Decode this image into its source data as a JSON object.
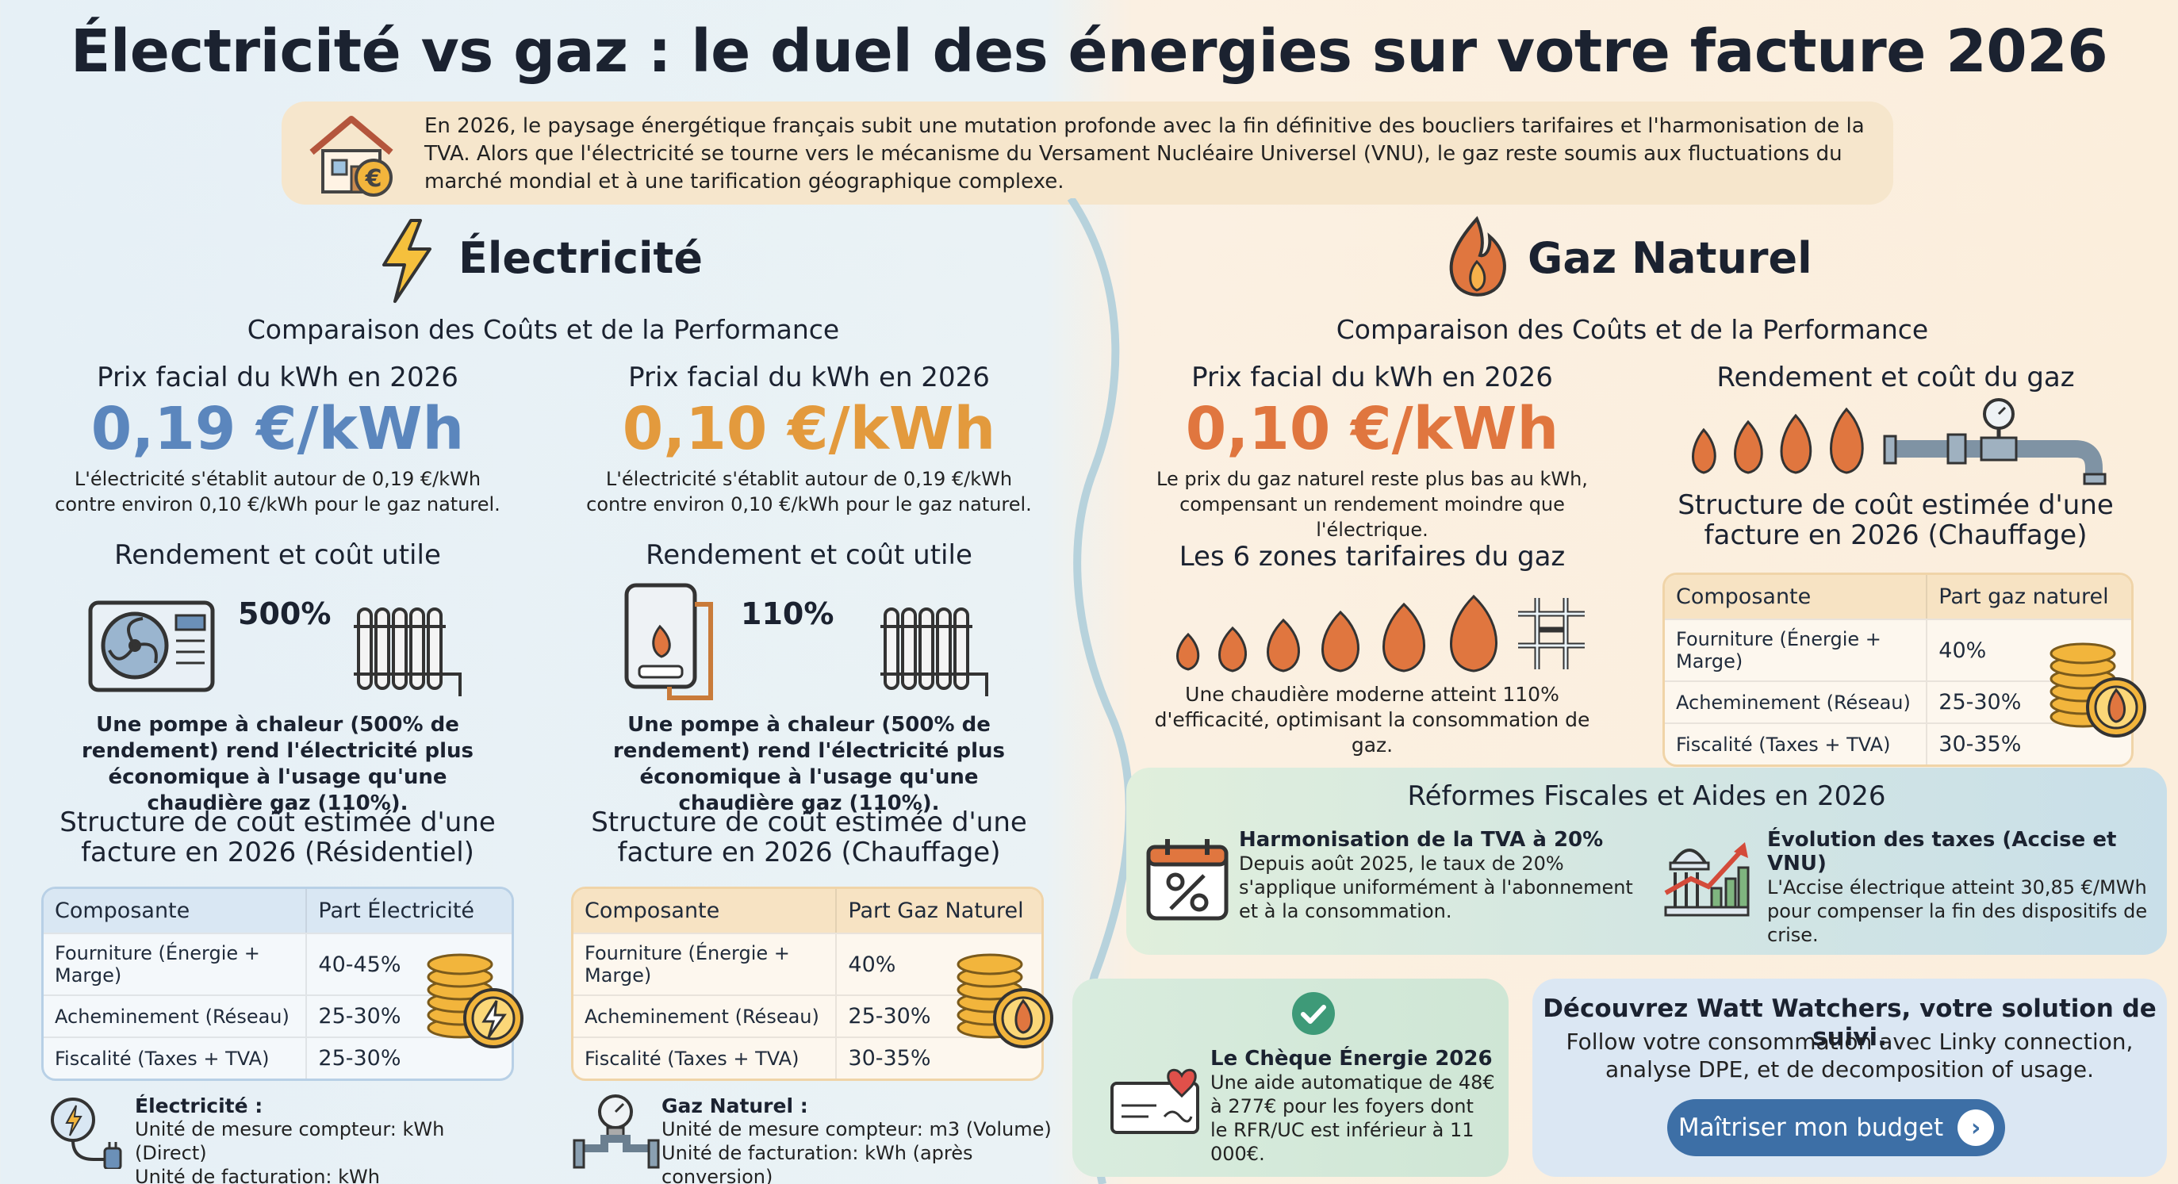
{
  "title": "Électricité vs gaz : le duel des énergies sur votre facture 2026",
  "intro": "En 2026, le paysage énergétique français subit une mutation profonde avec la fin définitive des boucliers tarifaires et l'harmonisation de la TVA. Alors que l'électricité se tourne vers le mécanisme du Versament Nucléaire Universel (VNU), le gaz reste soumis aux fluctuations du marché mondial et à une tarification géographique complexe.",
  "electricity": {
    "heading": "Électricité",
    "subheading": "Comparaison des Coûts et de la Performance",
    "col1": {
      "price_title": "Prix facial du kWh en 2026",
      "price": "0,19 €/kWh",
      "price_note": "L'électricité s'établit autour de 0,19 €/kWh contre environ 0,10 €/kWh pour le gaz naturel.",
      "yield_title": "Rendement et coût utile",
      "yield_pct": "500%",
      "yield_note": "Une pompe à chaleur (500% de rendement) rend l'électricité plus économique à l'usage qu'une chaudière gaz (110%).",
      "table_title": "Structure de coût estimée d'une facture en 2026 (Résidentiel)",
      "table_headers": [
        "Composante",
        "Part Électricité"
      ],
      "rows": [
        {
          "label": "Fourniture (Énergie + Marge)",
          "value": "40-45%"
        },
        {
          "label": "Acheminement (Réseau)",
          "value": "25-30%"
        },
        {
          "label": "Fiscalité (Taxes + TVA)",
          "value": "25-30%"
        }
      ],
      "unit_title": "Électricité :",
      "unit_line1": "Unité de mesure compteur: kWh (Direct)",
      "unit_line2": "Unité de facturation: kWh"
    },
    "col2": {
      "price_title": "Prix facial du kWh en 2026",
      "price": "0,10 €/kWh",
      "price_note": "L'électricité s'établit autour de 0,19 €/kWh contre environ 0,10 €/kWh pour le gaz naturel.",
      "yield_title": "Rendement et coût utile",
      "yield_pct": "110%",
      "yield_note": "Une pompe à chaleur (500% de rendement) rend l'électricité plus économique à l'usage qu'une chaudière gaz (110%).",
      "table_title": "Structure de coût estimée d'une facture en 2026 (Chauffage)",
      "table_headers": [
        "Composante",
        "Part Gaz Naturel"
      ],
      "rows": [
        {
          "label": "Fourniture (Énergie + Marge)",
          "value": "40%"
        },
        {
          "label": "Acheminement (Réseau)",
          "value": "25-30%"
        },
        {
          "label": "Fiscalité (Taxes + TVA)",
          "value": "30-35%"
        }
      ],
      "unit_title": "Gaz Naturel :",
      "unit_line1": "Unité de mesure compteur: m3 (Volume)",
      "unit_line2": "Unité de facturation: kWh (après conversion)"
    }
  },
  "gas": {
    "heading": "Gaz Naturel",
    "subheading": "Comparaison des Coûts et de la Performance",
    "price_title": "Prix facial du kWh en 2026",
    "price": "0,10 €/kWh",
    "price_note": "Le prix du gaz naturel reste plus bas au kWh, compensant un rendement moindre que l'électrique.",
    "zones_title": "Les 6 zones tarifaires du gaz",
    "zones_note": "Une chaudière moderne atteint 110% d'efficacité, optimisant la consommation de gaz.",
    "yield_title": "Rendement et coût du gaz",
    "table_title": "Structure de coût estimée d'une facture en 2026 (Chauffage)",
    "table_headers": [
      "Composante",
      "Part gaz naturel"
    ],
    "rows": [
      {
        "label": "Fourniture (Énergie + Marge)",
        "value": "40%"
      },
      {
        "label": "Acheminement (Réseau)",
        "value": "25-30%"
      },
      {
        "label": "Fiscalité (Taxes + TVA)",
        "value": "30-35%"
      }
    ]
  },
  "reforms": {
    "title": "Réformes Fiscales et Aides en 2026",
    "tva_title": "Harmonisation de la TVA à 20%",
    "tva_text": "Depuis août 2025, le taux de 20% s'applique uniformément à l'abonnement et à la consommation.",
    "tax_title": "Évolution des taxes (Accise et VNU)",
    "tax_text": "L'Accise électrique atteint 30,85 €/MWh pour compenser la fin des dispositifs de crise."
  },
  "cheque": {
    "title": "Le Chèque Énergie 2026",
    "text": "Une aide automatique de 48€ à 277€ pour les foyers dont le RFR/UC est inférieur à 11 000€."
  },
  "watt": {
    "title": "Découvrez Watt Watchers, votre solution de suivi.",
    "text": "Follow votre consommation avec Linky connection, analyse DPE, et de decomposition of usage.",
    "cta": "Maîtriser mon budget"
  },
  "colors": {
    "elec_blue": "#5b86bd",
    "gas_orange": "#e39a3d",
    "gas_red": "#e0763f",
    "cta": "#3d6fa6"
  }
}
